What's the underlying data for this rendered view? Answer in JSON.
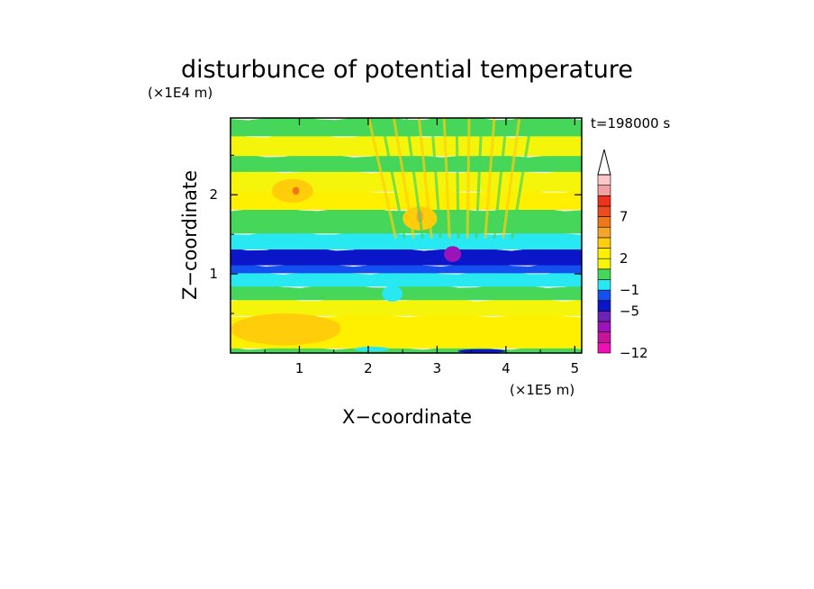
{
  "chart_data": {
    "type": "heatmap",
    "title": "disturbunce of potential temperature",
    "time_label": "t=198000 s",
    "xlabel": "X−coordinate",
    "ylabel": "Z−coordinate",
    "x_unit": "(×1E5 m)",
    "y_unit": "(×1E4 m)",
    "xlim": [
      0,
      5.1
    ],
    "ylim": [
      0,
      2.97
    ],
    "x_ticks": [
      1,
      2,
      3,
      4,
      5
    ],
    "x_tick_labels": [
      "1",
      "2",
      "3",
      "4",
      "5"
    ],
    "y_ticks": [
      1,
      2
    ],
    "y_tick_labels": [
      "1",
      "2"
    ],
    "grid": false,
    "colorbar": {
      "levels": [
        -12,
        -10,
        -8,
        -6,
        -5,
        -3,
        -1,
        0,
        1,
        2,
        3,
        4,
        5,
        7,
        9,
        11,
        13
      ],
      "tick_values": [
        -12,
        -5,
        -1,
        2,
        7
      ],
      "tick_labels": [
        "−12",
        "−5",
        "−1",
        "2",
        "7"
      ],
      "colors": [
        "#f00fb4",
        "#c8149b",
        "#9b14b9",
        "#6c23b5",
        "#0a16c8",
        "#1450f0",
        "#28e8f2",
        "#46d65a",
        "#f4f50a",
        "#fff000",
        "#ffcd0a",
        "#f6a528",
        "#ee7819",
        "#eb4b1e",
        "#ee321e",
        "#f0a0a0",
        "#ffc8c8"
      ],
      "extend_max": true
    },
    "bands": [
      {
        "z_range": [
          0.0,
          0.07
        ],
        "value": 0.5
      },
      {
        "z_range": [
          0.07,
          0.48
        ],
        "value": 2.4
      },
      {
        "z_range": [
          0.48,
          0.68
        ],
        "value": 1.6
      },
      {
        "z_range": [
          0.68,
          0.85
        ],
        "value": 0.5
      },
      {
        "z_range": [
          0.85,
          1.02
        ],
        "value": -0.8
      },
      {
        "z_range": [
          1.02,
          1.12
        ],
        "value": -1.5
      },
      {
        "z_range": [
          1.12,
          1.32
        ],
        "value": -4.5
      },
      {
        "z_range": [
          1.32,
          1.52
        ],
        "value": -0.8
      },
      {
        "z_range": [
          1.52,
          1.82
        ],
        "value": 0.5
      },
      {
        "z_range": [
          1.82,
          2.05
        ],
        "value": 2.6
      },
      {
        "z_range": [
          2.05,
          2.3
        ],
        "value": 1.8
      },
      {
        "z_range": [
          2.3,
          2.5
        ],
        "value": 0.5
      },
      {
        "z_range": [
          2.5,
          2.75
        ],
        "value": 1.9
      },
      {
        "z_range": [
          2.75,
          2.97
        ],
        "value": 0.5
      }
    ],
    "features": [
      {
        "kind": "warm-patch",
        "x": [
          0.0,
          1.6
        ],
        "z": [
          0.1,
          0.5
        ],
        "value": 3.5
      },
      {
        "kind": "warm-patch",
        "x": [
          0.8,
          1.6
        ],
        "z": [
          0.2,
          0.45
        ],
        "value": 3.2
      },
      {
        "kind": "warm-patch",
        "x": [
          2.5,
          3.0
        ],
        "z": [
          1.55,
          1.85
        ],
        "value": 3.5
      },
      {
        "kind": "warm-patch",
        "x": [
          0.6,
          1.2
        ],
        "z": [
          1.9,
          2.2
        ],
        "value": 3.6
      },
      {
        "kind": "warm-patch",
        "x": [
          0.9,
          1.0
        ],
        "z": [
          2.0,
          2.1
        ],
        "value": 5.5
      },
      {
        "kind": "warm-patch",
        "x": [
          2.7,
          2.8
        ],
        "z": [
          1.65,
          1.8
        ],
        "value": 4.5
      },
      {
        "kind": "cold-patch",
        "x": [
          3.1,
          3.35
        ],
        "z": [
          1.15,
          1.35
        ],
        "value": -7
      },
      {
        "kind": "cold-patch",
        "x": [
          3.3,
          4.0
        ],
        "z": [
          0.0,
          0.05
        ],
        "value": -4.5
      },
      {
        "kind": "cyan-patch",
        "x": [
          2.2,
          2.5
        ],
        "z": [
          0.65,
          0.85
        ],
        "value": -0.8
      },
      {
        "kind": "cyan-patch",
        "x": [
          1.8,
          2.3
        ],
        "z": [
          0.02,
          0.08
        ],
        "value": -0.8
      }
    ]
  }
}
